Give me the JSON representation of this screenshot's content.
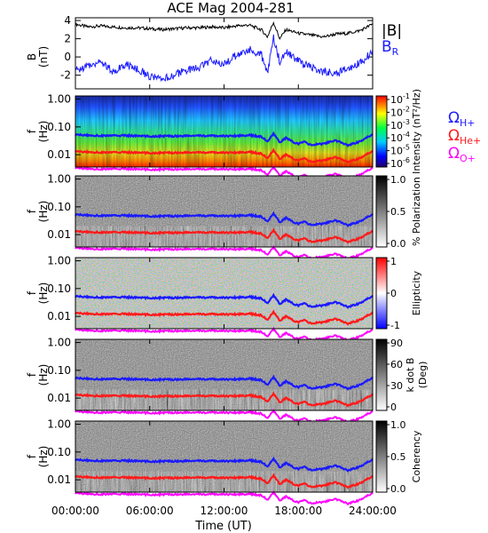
{
  "figure": {
    "title": "ACE Mag 2004-281",
    "xlabel": "Time (UT)",
    "xticks": [
      "00:00:00",
      "06:00:00",
      "12:00:00",
      "18:00:00",
      "24:00:00"
    ],
    "xrange_hours": [
      0,
      24
    ]
  },
  "colors": {
    "black": "#000000",
    "blue": "#1a1aff",
    "red": "#ff1a1a",
    "magenta": "#ff00ff"
  },
  "chart_data": [
    {
      "type": "line",
      "panel": "field",
      "ylabel": [
        "B",
        "(nT)"
      ],
      "ylim": [
        -3.5,
        4.3
      ],
      "yticks": [
        "4",
        "2",
        "0",
        "-2"
      ],
      "legend": [
        "|B|",
        "B"
      ],
      "legend_sub": [
        "",
        "R"
      ],
      "series": [
        {
          "name": "|B|",
          "color": "#000000",
          "x": [
            0,
            1,
            2,
            3,
            4,
            5,
            6,
            7,
            8,
            9,
            10,
            11,
            12,
            13,
            14,
            15,
            15.5,
            16,
            16.5,
            17,
            18,
            19,
            20,
            21,
            22,
            23,
            24
          ],
          "y": [
            3.6,
            3.3,
            3.4,
            3.3,
            3.2,
            3.2,
            3.1,
            3.0,
            3.1,
            3.2,
            3.2,
            3.3,
            3.2,
            3.4,
            3.5,
            3.0,
            2.2,
            3.8,
            2.0,
            3.0,
            2.6,
            2.4,
            2.2,
            2.5,
            2.6,
            2.9,
            3.6
          ]
        },
        {
          "name": "B_R",
          "color": "#1a1aff",
          "x": [
            0,
            1,
            2,
            3,
            4,
            5,
            6,
            7,
            8,
            9,
            10,
            11,
            12,
            13,
            14,
            15,
            15.5,
            16,
            16.5,
            17,
            18,
            19,
            20,
            21,
            22,
            23,
            24
          ],
          "y": [
            -1.5,
            -1.0,
            -0.4,
            -1.6,
            -0.8,
            -1.3,
            -2.1,
            -2.6,
            -1.9,
            -1.5,
            -1.2,
            -0.3,
            -0.8,
            0.2,
            0.8,
            0.3,
            -1.8,
            2.2,
            -0.5,
            0.5,
            -0.5,
            -1.2,
            -1.6,
            -1.8,
            -1.3,
            -0.6,
            0.5
          ]
        }
      ]
    },
    {
      "type": "heatmap",
      "panel": "intensity",
      "ylabel": [
        "f",
        "(Hz)"
      ],
      "yticks": [
        "1.00",
        "0.10",
        "0.01"
      ],
      "colorbar_label": "Intensity (nT²/Hz)",
      "colorbar_ticks": [
        "10",
        "10",
        "10",
        "10",
        "10",
        "10"
      ],
      "colorbar_exponents": [
        "-1",
        "-2",
        "-3",
        "-4",
        "-5",
        "-6"
      ],
      "legend": [
        "Ω",
        "Ω",
        "Ω"
      ],
      "legend_sub": [
        "H+",
        "He+",
        "O+"
      ]
    },
    {
      "type": "heatmap",
      "panel": "polarization",
      "ylabel": [
        "f",
        "(Hz)"
      ],
      "yticks": [
        "1.00",
        "0.10",
        "0.01"
      ],
      "colorbar_label": "% Polarization",
      "colorbar_ticks": [
        "1.0",
        "0.5",
        "0.0"
      ]
    },
    {
      "type": "heatmap",
      "panel": "ellipticity",
      "ylabel": [
        "f",
        "(Hz)"
      ],
      "yticks": [
        "1.00",
        "0.10",
        "0.01"
      ],
      "colorbar_label": "Ellipticity",
      "colorbar_ticks": [
        "1",
        "0",
        "-1"
      ]
    },
    {
      "type": "heatmap",
      "panel": "kdotb",
      "ylabel": [
        "f",
        "(Hz)"
      ],
      "yticks": [
        "1.00",
        "0.10",
        "0.01"
      ],
      "colorbar_label": "k dot B",
      "colorbar_label2": "(Deg)",
      "colorbar_ticks": [
        "90",
        "60",
        "30",
        "0"
      ]
    },
    {
      "type": "heatmap",
      "panel": "coherency",
      "ylabel": [
        "f",
        "(Hz)"
      ],
      "yticks": [
        "1.00",
        "0.10",
        "0.01"
      ],
      "colorbar_label": "Coherency",
      "colorbar_ticks": [
        "1.0",
        "0.5",
        "0.0"
      ]
    }
  ],
  "gyrofrequency_lines": {
    "x": [
      0,
      2,
      4,
      6,
      8,
      10,
      12,
      13,
      14,
      15,
      15.5,
      16,
      16.5,
      17,
      17.5,
      18,
      18.5,
      19,
      20,
      21,
      22,
      23,
      24
    ],
    "H+": [
      0.052,
      0.048,
      0.049,
      0.046,
      0.047,
      0.048,
      0.047,
      0.048,
      0.05,
      0.045,
      0.03,
      0.055,
      0.028,
      0.04,
      0.03,
      0.024,
      0.03,
      0.022,
      0.025,
      0.032,
      0.022,
      0.03,
      0.055
    ],
    "He+": [
      0.013,
      0.012,
      0.0122,
      0.0115,
      0.0118,
      0.012,
      0.0118,
      0.012,
      0.0125,
      0.011,
      0.0075,
      0.0138,
      0.007,
      0.01,
      0.0075,
      0.006,
      0.0075,
      0.0055,
      0.0062,
      0.008,
      0.0055,
      0.0075,
      0.0138
    ],
    "O+": [
      0.0033,
      0.003,
      0.0031,
      0.0029,
      0.003,
      0.003,
      0.003,
      0.003,
      0.0031,
      0.0028,
      0.0019,
      0.0034,
      0.0018,
      0.0025,
      0.0019,
      0.0015,
      0.0019,
      0.0014,
      0.0016,
      0.002,
      0.0014,
      0.0019,
      0.0034
    ]
  }
}
